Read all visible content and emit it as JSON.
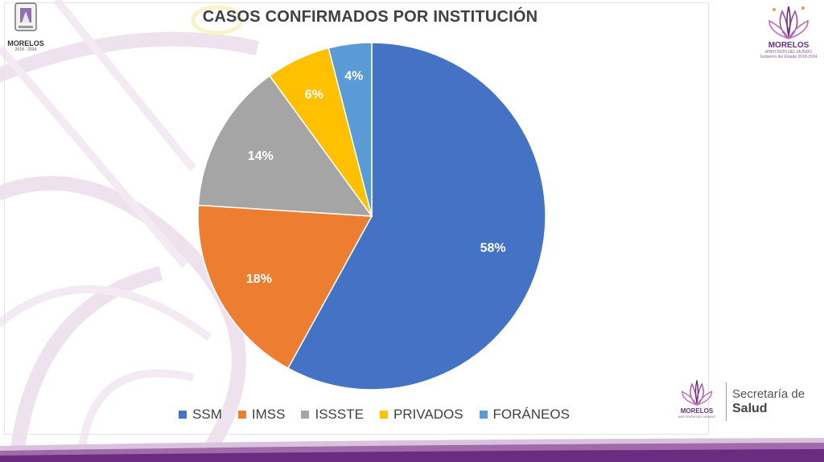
{
  "chart_data": {
    "type": "pie",
    "title": "CASOS CONFIRMADOS POR INSTITUCIÓN",
    "categories": [
      "SSM",
      "IMSS",
      "ISSSTE",
      "PRIVADOS",
      "FORÁNEOS"
    ],
    "values": [
      58,
      18,
      14,
      6,
      4
    ],
    "data_labels": [
      "58%",
      "18%",
      "14%",
      "6%",
      "4%"
    ],
    "colors": [
      "#4472c4",
      "#ed7d31",
      "#a5a5a5",
      "#ffc000",
      "#5b9bd5"
    ],
    "legend_position": "bottom",
    "start": "top",
    "direction": "clockwise"
  },
  "branding": {
    "left_logo_text": "MORELOS",
    "left_logo_years": "2018 - 2024",
    "right_logo_name": "MORELOS",
    "right_logo_sub": "ANFITRIÓN DEL MUNDO",
    "right_logo_sub2": "Gobierno del Estado 2018-2024",
    "secretaria_line1": "Secretaría de",
    "secretaria_line2": "Salud"
  },
  "colors": {
    "title_text": "#404040",
    "brand_purple": "#6b2c7f",
    "decor_pink": "#efe0ee"
  }
}
